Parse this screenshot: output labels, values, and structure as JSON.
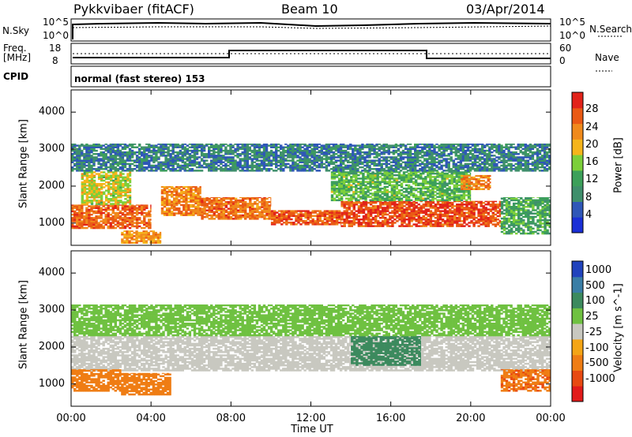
{
  "header": {
    "title": "Pykkvibaer (fitACF)",
    "beam": "Beam 10",
    "date": "03/Apr/2014"
  },
  "top_panels": {
    "nsky_label": "N.Sky",
    "nsearch_label": "N.Search",
    "nsky_ticks": [
      "10^5",
      "10^0"
    ],
    "nsearch_ticks": [
      "10^5",
      "10^0"
    ],
    "freq_label_1": "Freq.",
    "freq_label_2": "[MHz]",
    "freq_ticks": [
      "18",
      "8"
    ],
    "nave_label": "Nave",
    "nave_ticks": [
      "60",
      "0"
    ],
    "cpid_label": "CPID",
    "cpid_text": "normal (fast stereo) 153"
  },
  "colors": {
    "power_scale": [
      "#1a2fd6",
      "#2f57b8",
      "#3f8f6c",
      "#3ca05a",
      "#7ccf3a",
      "#f6b51b",
      "#f08a1c",
      "#ea5a14",
      "#e2231a"
    ],
    "velocity_scale": [
      "#2143bd",
      "#3a7ea6",
      "#3c8a5e",
      "#6fc141",
      "#c8c8c0",
      "#f4a516",
      "#ef7d14",
      "#e84a12",
      "#e21b1a"
    ],
    "ground_scatter": "#c8c8c0"
  },
  "chart_data": [
    {
      "type": "heatmap",
      "name": "power-panel",
      "ylabel": "Slant Range [km]",
      "xlabel": "",
      "yticks": [
        "1000",
        "2000",
        "3000",
        "4000"
      ],
      "ylim": [
        400,
        4600
      ],
      "xlim": [
        0,
        24
      ],
      "colorbar_label": "Power [dB]",
      "colorbar_ticks": [
        "4",
        "8",
        "12",
        "16",
        "20",
        "24",
        "28"
      ],
      "colorbar_range": [
        0,
        32
      ],
      "bands": [
        {
          "t0": 0.0,
          "t1": 4.0,
          "r0": 850,
          "r1": 1500,
          "power": 26
        },
        {
          "t0": 0.5,
          "t1": 3.0,
          "r0": 1500,
          "r1": 2400,
          "power": 18
        },
        {
          "t0": 2.5,
          "t1": 4.5,
          "r0": 450,
          "r1": 800,
          "power": 22
        },
        {
          "t0": 4.5,
          "t1": 6.5,
          "r0": 1200,
          "r1": 2000,
          "power": 24
        },
        {
          "t0": 6.5,
          "t1": 10.0,
          "r0": 1100,
          "r1": 1700,
          "power": 25
        },
        {
          "t0": 10.0,
          "t1": 13.5,
          "r0": 950,
          "r1": 1350,
          "power": 27
        },
        {
          "t0": 13.5,
          "t1": 21.5,
          "r0": 900,
          "r1": 1600,
          "power": 28
        },
        {
          "t0": 13.0,
          "t1": 20.0,
          "r0": 1600,
          "r1": 2400,
          "power": 14
        },
        {
          "t0": 0.0,
          "t1": 24.0,
          "r0": 2400,
          "r1": 3150,
          "power": 8
        },
        {
          "t0": 19.5,
          "t1": 21.0,
          "r0": 1900,
          "r1": 2300,
          "power": 24
        },
        {
          "t0": 21.5,
          "t1": 24.0,
          "r0": 700,
          "r1": 1700,
          "power": 12
        }
      ]
    },
    {
      "type": "heatmap",
      "name": "velocity-panel",
      "ylabel": "Slant Range [km]",
      "xlabel": "Time UT",
      "yticks": [
        "1000",
        "2000",
        "3000",
        "4000"
      ],
      "ylim": [
        400,
        4600
      ],
      "xlim": [
        0,
        24
      ],
      "xticks": [
        "00:00",
        "04:00",
        "08:00",
        "12:00",
        "16:00",
        "20:00",
        "00:00"
      ],
      "colorbar_label": "Velocity [m s^-1]",
      "colorbar_ticks": [
        "1000",
        "500",
        "100",
        "25",
        "-25",
        "-100",
        "-500",
        "-1000"
      ],
      "bands": [
        {
          "t0": 0.0,
          "t1": 24.0,
          "r0": 1350,
          "r1": 2300,
          "velocity": 0
        },
        {
          "t0": 0.0,
          "t1": 2.5,
          "r0": 800,
          "r1": 1400,
          "velocity": -300
        },
        {
          "t0": 2.5,
          "t1": 5.0,
          "r0": 700,
          "r1": 1300,
          "velocity": -200
        },
        {
          "t0": 14.0,
          "t1": 17.5,
          "r0": 1500,
          "r1": 2300,
          "velocity": 300
        },
        {
          "t0": 21.5,
          "t1": 24.0,
          "r0": 800,
          "r1": 1400,
          "velocity": -400
        },
        {
          "t0": 0.0,
          "t1": 24.0,
          "r0": 2300,
          "r1": 3150,
          "velocity": 50
        }
      ]
    }
  ]
}
